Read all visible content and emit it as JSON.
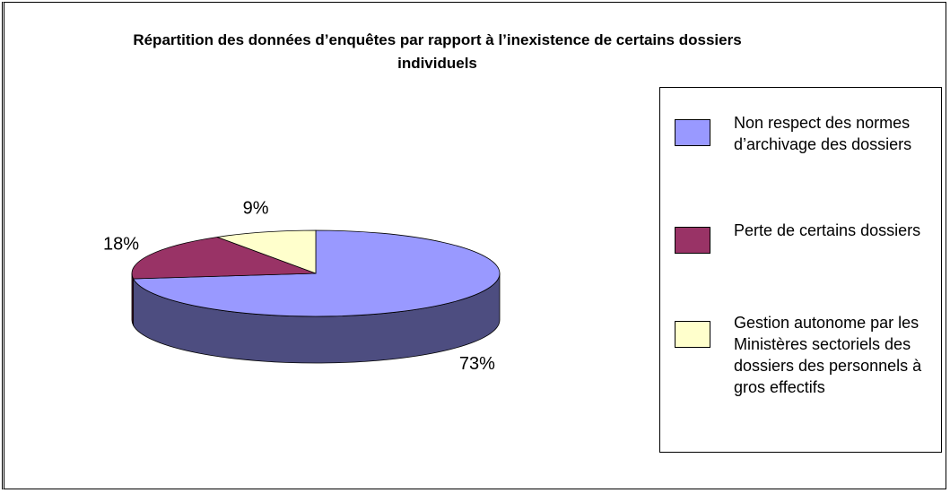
{
  "chart_data": {
    "type": "pie3d",
    "title": "Répartition des données d’enquêtes par rapport à l’inexistence de certains dossiers individuels",
    "categories": [
      "Non respect des normes d’archivage des dossiers",
      "Perte de certains dossiers",
      "Gestion autonome par les Ministères sectoriels des dossiers des personnels à gros effectifs"
    ],
    "values": [
      73,
      18,
      9
    ],
    "value_labels": [
      "73%",
      "18%",
      "9%"
    ],
    "colors": [
      "#9999ff",
      "#993366",
      "#ffffcc"
    ],
    "legend": "right"
  }
}
